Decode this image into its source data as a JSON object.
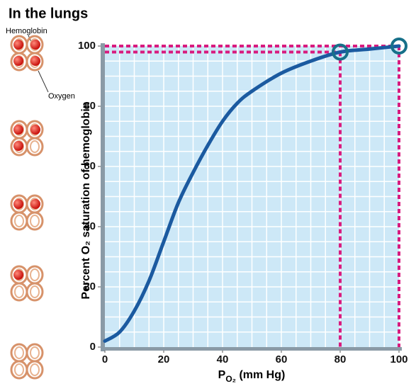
{
  "chart_data": {
    "type": "line",
    "title": "In the lungs",
    "callouts": [
      "Hemoglobin",
      "Oxygen"
    ],
    "y_label": "Percent O₂ saturation of hemoglobin",
    "x_label": {
      "main": "P",
      "sub": "O₂",
      "rest": " (mm Hg)"
    },
    "x": [
      0,
      5,
      10,
      15,
      20,
      25,
      30,
      35,
      40,
      45,
      50,
      60,
      70,
      80,
      90,
      100
    ],
    "series": [
      {
        "color": "#1b5aa0",
        "values": [
          2,
          5,
          12,
          22,
          35,
          48,
          58,
          67,
          75,
          81,
          85,
          91,
          95,
          98,
          99,
          100
        ]
      }
    ],
    "highlights": [
      {
        "x": 80,
        "y": 98
      },
      {
        "x": 100,
        "y": 100
      }
    ],
    "highlight_color": "#d81b7f",
    "xlim": [
      0,
      100
    ],
    "ylim": [
      0,
      100
    ],
    "xticks": [
      0,
      20,
      40,
      60,
      80,
      100
    ],
    "yticks": [
      0,
      20,
      40,
      60,
      80,
      100
    ],
    "grid": true,
    "grid_step": 5
  }
}
